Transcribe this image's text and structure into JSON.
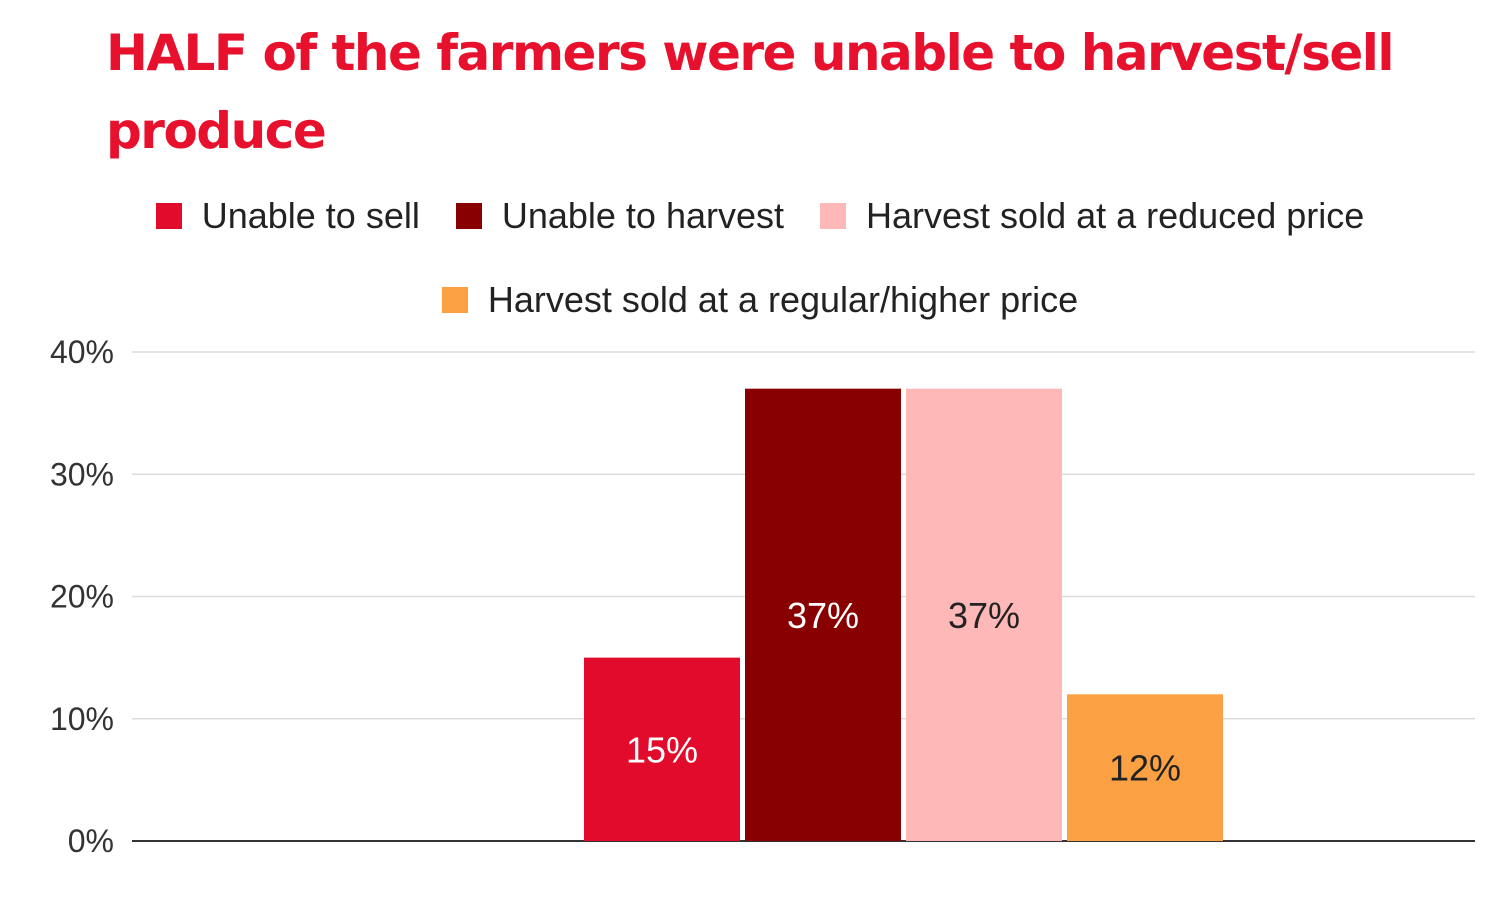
{
  "chart_data": {
    "type": "bar",
    "title": "HALF of the farmers were unable to harvest/sell produce",
    "xlabel": "",
    "ylabel": "",
    "ylim": [
      0,
      40
    ],
    "yticks": [
      "0%",
      "10%",
      "20%",
      "30%",
      "40%"
    ],
    "ytick_values": [
      0,
      10,
      20,
      30,
      40
    ],
    "grid": true,
    "legend_position": "top",
    "series": [
      {
        "name": "Unable to sell",
        "value": 15,
        "label": "15%",
        "color": "#e20b2b",
        "label_color": "#ffffff"
      },
      {
        "name": "Unable to harvest",
        "value": 37,
        "label": "37%",
        "color": "#880000",
        "label_color": "#ffffff"
      },
      {
        "name": "Harvest sold at a reduced price",
        "value": 37,
        "label": "37%",
        "color": "#ffb8b8",
        "label_color": "#222222"
      },
      {
        "name": "Harvest sold at a regular/higher price",
        "value": 12,
        "label": "12%",
        "color": "#fca143",
        "label_color": "#222222"
      }
    ]
  }
}
